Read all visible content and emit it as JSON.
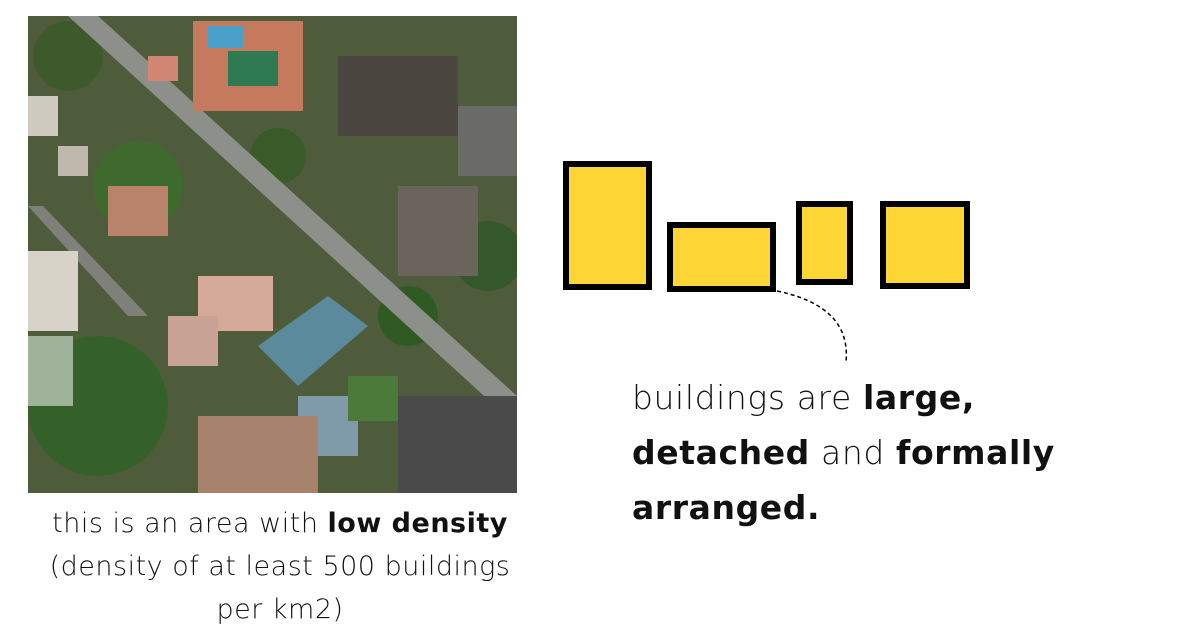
{
  "image": {
    "description_icon": "aerial-photo-icon"
  },
  "left_caption": {
    "line1_pre": "this is an area with ",
    "line1_bold": "low density",
    "line2": "(density of at least 500 buildings",
    "line3": "per km2)"
  },
  "right_caption": {
    "t1": "buildings are ",
    "b1": "large,",
    "b2": "detached",
    "t2": " and ",
    "b3": "formally",
    "b4": "arranged."
  },
  "colors": {
    "footprint_fill": "#FDD535",
    "footprint_stroke": "#000000",
    "text": "#111111"
  }
}
